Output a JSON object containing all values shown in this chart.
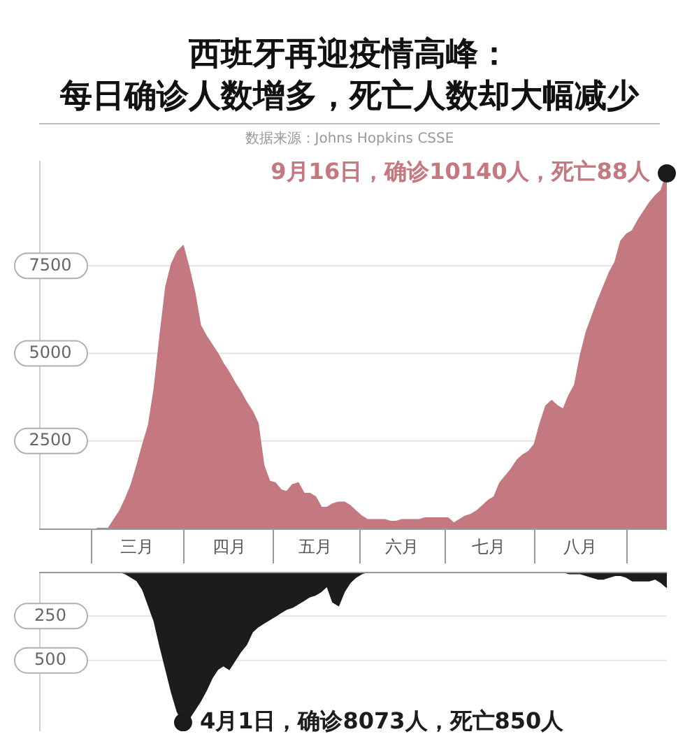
{
  "chart_data": [
    {
      "type": "area",
      "title": "西班牙再迎疫情高峰：",
      "subtitle": "每日确诊人数增多，死亡人数却大幅减少",
      "annotations": [
        "数据来源：Johns Hopkins CSSE",
        "9月16日，确诊10140人，死亡88人"
      ],
      "categories": [
        null,
        null,
        null,
        null,
        null,
        null,
        null,
        null,
        null,
        null,
        null,
        null,
        null,
        null,
        null,
        null,
        null,
        "三月",
        null,
        null,
        null,
        null,
        null,
        null,
        null,
        null,
        null,
        null,
        null,
        null,
        null,
        null,
        null,
        "四月",
        null,
        null,
        null,
        null,
        null,
        null,
        null,
        null,
        null,
        null,
        null,
        null,
        null,
        null,
        "五月",
        null,
        null,
        null,
        null,
        null,
        null,
        null,
        null,
        null,
        null,
        null,
        null,
        null,
        null,
        "六月",
        null,
        null,
        null,
        null,
        null,
        null,
        null,
        null,
        null,
        null,
        null,
        null,
        null,
        null,
        "七月",
        null,
        null,
        null,
        null,
        null,
        null,
        null,
        null,
        null,
        null,
        null,
        null,
        null,
        null,
        null,
        "八月",
        null,
        null,
        null,
        null,
        null,
        null,
        null,
        null,
        null,
        null,
        null,
        null,
        null,
        null,
        null
      ],
      "series": [
        {
          "color": "#c4787f",
          "values": [
            null,
            null,
            null,
            null,
            null,
            null,
            null,
            null,
            null,
            null,
            0,
            0,
            0,
            250,
            500,
            850,
            1250,
            1800,
            2400,
            2950,
            4000,
            5500,
            6900,
            7550,
            7900,
            8073,
            7450,
            6750,
            5800,
            5500,
            5250,
            5000,
            4700,
            4450,
            4150,
            3900,
            3600,
            3350,
            3000,
            1800,
            1350,
            1300,
            1100,
            1050,
            1250,
            1300,
            1000,
            1000,
            900,
            600,
            600,
            700,
            750,
            750,
            650,
            500,
            350,
            250,
            250,
            250,
            250,
            200,
            200,
            250,
            250,
            250,
            250,
            300,
            300,
            300,
            300,
            300,
            150,
            250,
            350,
            400,
            500,
            650,
            800,
            900,
            1300,
            1500,
            1700,
            1950,
            2100,
            2200,
            2400,
            3000,
            3500,
            3650,
            3500,
            3400,
            3800,
            4100,
            4950,
            5600,
            6050,
            6500,
            6900,
            7300,
            7600,
            8200,
            8400,
            8500,
            8800,
            9050,
            9300,
            9500,
            9650,
            10140
          ]
        },
        {
          "type": "scatter",
          "color": "#1a1a1a",
          "marker": "circle",
          "values": [
            null,
            null,
            null,
            null,
            null,
            null,
            null,
            null,
            null,
            null,
            null,
            null,
            null,
            null,
            null,
            null,
            null,
            null,
            null,
            null,
            null,
            null,
            null,
            null,
            null,
            null,
            null,
            null,
            null,
            null,
            null,
            null,
            null,
            null,
            null,
            null,
            null,
            null,
            null,
            null,
            null,
            null,
            null,
            null,
            null,
            null,
            null,
            null,
            null,
            null,
            null,
            null,
            null,
            null,
            null,
            null,
            null,
            null,
            null,
            null,
            null,
            null,
            null,
            null,
            null,
            null,
            null,
            null,
            null,
            null,
            null,
            null,
            null,
            null,
            null,
            null,
            null,
            null,
            null,
            null,
            null,
            null,
            null,
            null,
            null,
            null,
            null,
            null,
            null,
            null,
            null,
            null,
            null,
            null,
            null,
            null,
            null,
            null,
            null,
            null,
            null,
            null,
            null,
            null,
            null,
            null,
            null,
            null,
            null,
            10140
          ]
        }
      ],
      "ylim": [
        0,
        10500
      ],
      "yticks": [
        2500,
        5000,
        7500
      ],
      "grid": "y"
    },
    {
      "type": "area",
      "annotations": [
        "4月1日，确诊8073人，死亡850人"
      ],
      "categories": [
        null,
        null,
        null,
        null,
        null,
        null,
        null,
        null,
        null,
        null,
        null,
        null,
        null,
        null,
        null,
        null,
        null,
        null,
        null,
        null,
        null,
        null,
        null,
        null,
        null,
        null,
        null,
        null,
        null,
        null,
        null,
        null,
        null,
        null,
        null,
        null,
        null,
        null,
        null,
        null,
        null,
        null,
        null,
        null,
        null,
        null,
        null,
        null,
        null,
        null,
        null,
        null,
        null,
        null,
        null,
        null,
        null,
        null,
        null,
        null,
        null,
        null,
        null,
        null,
        null,
        null,
        null,
        null,
        null,
        null,
        null,
        null,
        null,
        null,
        null,
        null,
        null,
        null,
        null,
        null,
        null,
        null,
        null,
        null,
        null,
        null,
        null,
        null,
        null,
        null,
        null,
        null,
        null,
        null,
        null,
        null,
        null,
        null,
        null,
        null,
        null,
        null,
        null,
        null,
        null,
        null,
        null,
        null,
        null,
        null
      ],
      "series": [
        {
          "color": "#1c1c1c",
          "values": [
            null,
            null,
            null,
            null,
            null,
            null,
            null,
            null,
            null,
            null,
            null,
            null,
            null,
            null,
            0,
            10,
            30,
            50,
            100,
            190,
            280,
            420,
            550,
            680,
            790,
            850,
            830,
            780,
            730,
            670,
            600,
            550,
            530,
            550,
            500,
            450,
            410,
            340,
            310,
            290,
            270,
            250,
            230,
            210,
            200,
            180,
            160,
            140,
            130,
            110,
            80,
            170,
            190,
            110,
            60,
            30,
            10,
            0,
            0,
            0,
            0,
            0,
            0,
            0,
            0,
            0,
            0,
            0,
            0,
            0,
            0,
            0,
            0,
            0,
            0,
            0,
            0,
            0,
            0,
            0,
            0,
            0,
            0,
            0,
            0,
            0,
            0,
            0,
            0,
            0,
            0,
            0,
            10,
            10,
            10,
            20,
            30,
            40,
            40,
            30,
            20,
            20,
            30,
            50,
            50,
            50,
            50,
            40,
            60,
            88
          ]
        },
        {
          "type": "scatter",
          "color": "#1a1a1a",
          "marker": "circle",
          "values": [
            null,
            null,
            null,
            null,
            null,
            null,
            null,
            null,
            null,
            null,
            null,
            null,
            null,
            null,
            null,
            null,
            null,
            null,
            null,
            null,
            null,
            null,
            null,
            null,
            null,
            850,
            null,
            null,
            null,
            null,
            null,
            null,
            null,
            null,
            null,
            null,
            null,
            null,
            null,
            null,
            null,
            null,
            null,
            null,
            null,
            null,
            null,
            null,
            null,
            null,
            null,
            null,
            null,
            null,
            null,
            null,
            null,
            null,
            null,
            null,
            null,
            null,
            null,
            null,
            null,
            null,
            null,
            null,
            null,
            null,
            null,
            null,
            null,
            null,
            null,
            null,
            null,
            null,
            null,
            null,
            null,
            null,
            null,
            null,
            null,
            null,
            null,
            null,
            null,
            null,
            null,
            null,
            null,
            null,
            null,
            null,
            null,
            null,
            null,
            null,
            null,
            null,
            null,
            null,
            null,
            null,
            null,
            null,
            null,
            null
          ]
        }
      ],
      "ylim": [
        900,
        0
      ],
      "yticks": [
        250,
        500
      ],
      "grid": "y",
      "tick_labels": "y"
    }
  ]
}
